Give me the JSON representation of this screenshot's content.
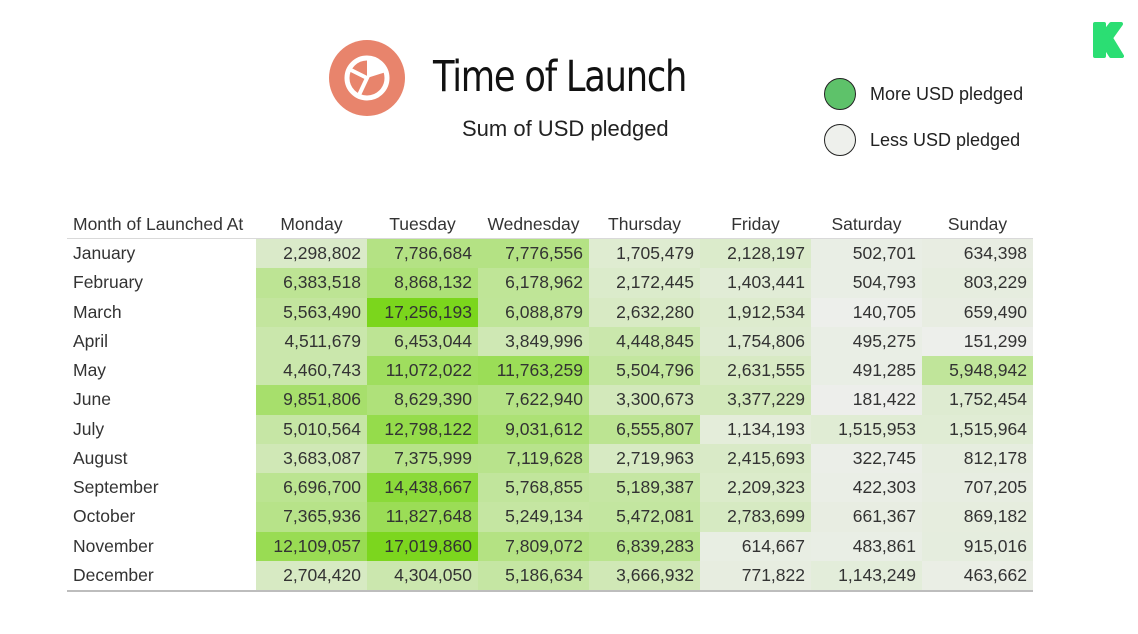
{
  "header": {
    "title": "Time of Launch",
    "subtitle": "Sum of USD pledged",
    "icon": "pie-chart-icon",
    "icon_color": "#e8846c"
  },
  "legend": {
    "items": [
      {
        "label": "More USD pledged",
        "color": "#5ec26a"
      },
      {
        "label": "Less USD pledged",
        "color": "#eef0ec"
      }
    ]
  },
  "brand": {
    "icon": "kickstarter-logo-icon",
    "color": "#2bde73"
  },
  "colors": {
    "low": "#efefef",
    "high": "#7bd61c"
  },
  "chart_data": {
    "type": "heatmap",
    "title": "Time of Launch",
    "subtitle": "Sum of USD pledged",
    "row_header": "Month of Launched At",
    "columns": [
      "Monday",
      "Tuesday",
      "Wednesday",
      "Thursday",
      "Friday",
      "Saturday",
      "Sunday"
    ],
    "rows": [
      {
        "month": "January",
        "values": [
          "2,298,802",
          "7,786,684",
          "7,776,556",
          "1,705,479",
          "2,128,197",
          "502,701",
          "634,398"
        ]
      },
      {
        "month": "February",
        "values": [
          "6,383,518",
          "8,868,132",
          "6,178,962",
          "2,172,445",
          "1,403,441",
          "504,793",
          "803,229"
        ]
      },
      {
        "month": "March",
        "values": [
          "5,563,490",
          "17,256,193",
          "6,088,879",
          "2,632,280",
          "1,912,534",
          "140,705",
          "659,490"
        ]
      },
      {
        "month": "April",
        "values": [
          "4,511,679",
          "6,453,044",
          "3,849,996",
          "4,448,845",
          "1,754,806",
          "495,275",
          "151,299"
        ]
      },
      {
        "month": "May",
        "values": [
          "4,460,743",
          "11,072,022",
          "11,763,259",
          "5,504,796",
          "2,631,555",
          "491,285",
          "5,948,942"
        ]
      },
      {
        "month": "June",
        "values": [
          "9,851,806",
          "8,629,390",
          "7,622,940",
          "3,300,673",
          "3,377,229",
          "181,422",
          "1,752,454"
        ]
      },
      {
        "month": "July",
        "values": [
          "5,010,564",
          "12,798,122",
          "9,031,612",
          "6,555,807",
          "1,134,193",
          "1,515,953",
          "1,515,964"
        ]
      },
      {
        "month": "August",
        "values": [
          "3,683,087",
          "7,375,999",
          "7,119,628",
          "2,719,963",
          "2,415,693",
          "322,745",
          "812,178"
        ]
      },
      {
        "month": "September",
        "values": [
          "6,696,700",
          "14,438,667",
          "5,768,855",
          "5,189,387",
          "2,209,323",
          "422,303",
          "707,205"
        ]
      },
      {
        "month": "October",
        "values": [
          "7,365,936",
          "11,827,648",
          "5,249,134",
          "5,472,081",
          "2,783,699",
          "661,367",
          "869,182"
        ]
      },
      {
        "month": "November",
        "values": [
          "12,109,057",
          "17,019,860",
          "7,809,072",
          "6,839,283",
          "614,667",
          "483,861",
          "915,016"
        ]
      },
      {
        "month": "December",
        "values": [
          "2,704,420",
          "4,304,050",
          "5,186,634",
          "3,666,932",
          "771,822",
          "1,143,249",
          "463,662"
        ]
      }
    ]
  }
}
